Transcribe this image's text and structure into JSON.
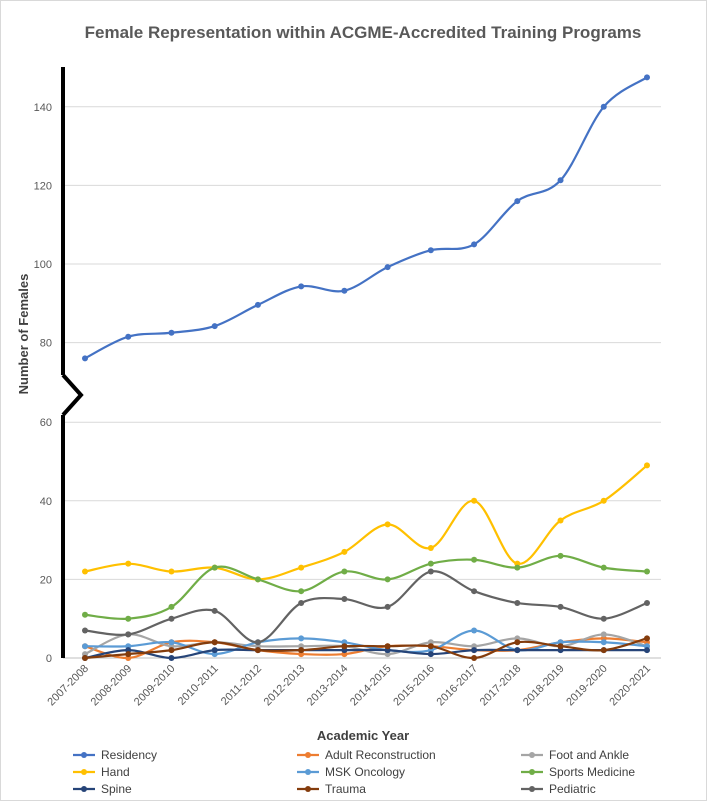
{
  "chart_data": {
    "type": "line",
    "title": "Female Representation within ACGME-Accredited Training Programs",
    "xlabel": "Academic Year",
    "ylabel": "Number of Females",
    "categories": [
      "2007-2008",
      "2008-2009",
      "2009-2010",
      "2010-2011",
      "2011-2012",
      "2012-2013",
      "2013-2014",
      "2014-2015",
      "2015-2016",
      "2016-2017",
      "2017-2018",
      "2018-2019",
      "2019-2020",
      "2020-2021"
    ],
    "axis_break": {
      "lower_range": [
        0,
        60
      ],
      "upper_range": [
        70,
        150
      ]
    },
    "lower_ticks": [
      0,
      20,
      40,
      60
    ],
    "upper_ticks": [
      80,
      100,
      120,
      140
    ],
    "grid": true,
    "legend_position": "bottom",
    "series": [
      {
        "name": "Residency",
        "color": "#4472C4",
        "values": [
          76,
          81.5,
          82.5,
          84.2,
          89.6,
          94.3,
          93.2,
          99.2,
          103.5,
          105,
          116,
          121.3,
          140,
          147.5
        ]
      },
      {
        "name": "Adult Reconstruction",
        "color": "#ED7D31",
        "values": [
          3,
          0,
          4,
          4,
          2,
          1,
          1,
          3,
          3,
          2,
          2,
          4,
          5,
          4
        ]
      },
      {
        "name": "Foot and Ankle",
        "color": "#A5A5A5",
        "values": [
          1,
          6,
          3,
          4,
          3,
          3,
          3,
          1,
          4,
          3,
          5,
          3,
          6,
          3
        ]
      },
      {
        "name": "Hand",
        "color": "#FFC000",
        "values": [
          22,
          24,
          22,
          23,
          20,
          23,
          27,
          34,
          28,
          40,
          24,
          35,
          40,
          49
        ]
      },
      {
        "name": "MSK Oncology",
        "color": "#5B9BD5",
        "values": [
          3,
          3,
          4,
          1,
          4,
          5,
          4,
          2,
          2,
          7,
          2,
          4,
          4,
          3
        ]
      },
      {
        "name": "Sports Medicine",
        "color": "#70AD47",
        "values": [
          11,
          10,
          13,
          23,
          20,
          17,
          22,
          20,
          24,
          25,
          23,
          26,
          23,
          22
        ]
      },
      {
        "name": "Spine",
        "color": "#264478",
        "values": [
          0,
          2,
          0,
          2,
          2,
          2,
          2,
          2,
          1,
          2,
          2,
          2,
          2,
          2
        ]
      },
      {
        "name": "Trauma",
        "color": "#843C0C",
        "values": [
          0,
          1,
          2,
          4,
          2,
          2,
          3,
          3,
          3,
          0,
          4,
          3,
          2,
          5
        ]
      },
      {
        "name": "Pediatric",
        "color": "#636363",
        "values": [
          7,
          6,
          10,
          12,
          4,
          14,
          15,
          13,
          22,
          17,
          14,
          13,
          10,
          14
        ]
      }
    ]
  }
}
